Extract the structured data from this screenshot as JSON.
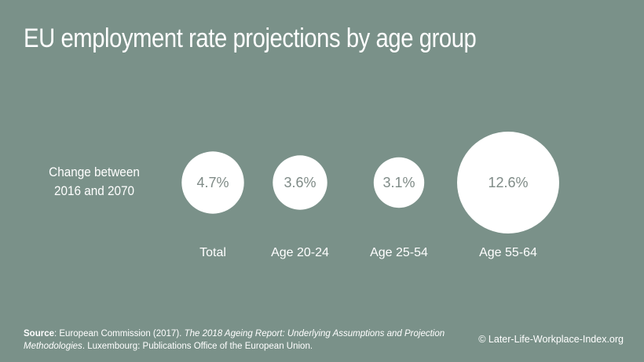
{
  "chart_data": {
    "type": "bubble",
    "title": "EU employment rate projections by age group",
    "row_label": [
      "Change between",
      "2016 and 2070"
    ],
    "categories": [
      "Total",
      "Age 20-24",
      "Age 25-54",
      "Age 55-64"
    ],
    "values": [
      4.7,
      3.6,
      3.1,
      12.6
    ],
    "value_labels": [
      "4.7%",
      "3.6%",
      "3.1%",
      "12.6%"
    ],
    "unit": "%"
  },
  "footer": {
    "source_label": "Source",
    "source_sep": ": ",
    "source_text_1": "European Commission (2017). ",
    "source_title": "The 2018 Ageing Report: Underlying Assumptions and Projection Methodologies",
    "source_text_2": ". Luxembourg: Publications Office of the European Union.",
    "copyright": "© Later-Life-Workplace-Index.org"
  },
  "colors": {
    "background": "#7a9189",
    "bubble_fill": "#ffffff",
    "bubble_text": "#7f8b87",
    "text": "#ffffff"
  }
}
